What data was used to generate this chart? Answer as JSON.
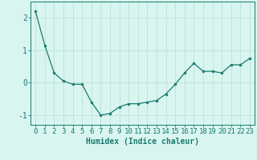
{
  "x": [
    0,
    1,
    2,
    3,
    4,
    5,
    6,
    7,
    8,
    9,
    10,
    11,
    12,
    13,
    14,
    15,
    16,
    17,
    18,
    19,
    20,
    21,
    22,
    23
  ],
  "y": [
    2.2,
    1.15,
    0.3,
    0.05,
    -0.05,
    -0.05,
    -0.6,
    -1.0,
    -0.95,
    -0.75,
    -0.65,
    -0.65,
    -0.6,
    -0.55,
    -0.35,
    -0.05,
    0.3,
    0.6,
    0.35,
    0.35,
    0.3,
    0.55,
    0.55,
    0.75
  ],
  "xlabel": "Humidex (Indice chaleur)",
  "ylim": [
    -1.3,
    2.5
  ],
  "xlim": [
    -0.5,
    23.5
  ],
  "line_color": "#1a7a6e",
  "marker_color": "#1a7a6e",
  "bg_color": "#d8f5f0",
  "grid_color": "#c0e0d8",
  "tick_labels": [
    "0",
    "1",
    "2",
    "3",
    "4",
    "5",
    "6",
    "7",
    "8",
    "9",
    "10",
    "11",
    "12",
    "13",
    "14",
    "15",
    "16",
    "17",
    "18",
    "19",
    "20",
    "21",
    "22",
    "23"
  ],
  "yticks": [
    -1,
    0,
    1,
    2
  ],
  "xlabel_fontsize": 7,
  "tick_fontsize": 6.5
}
